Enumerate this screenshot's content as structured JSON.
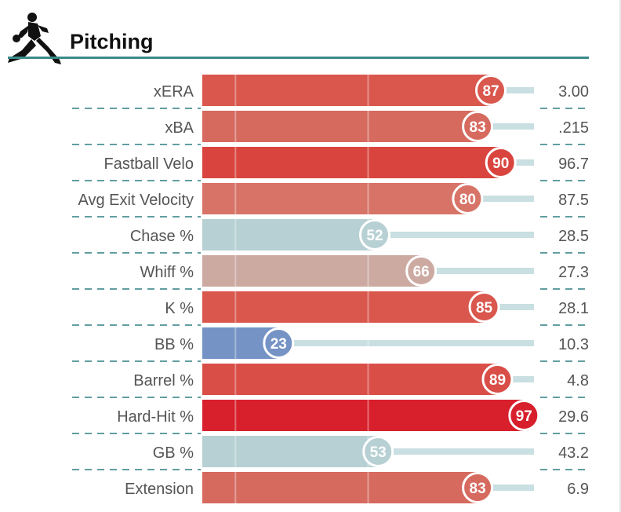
{
  "chart_data": {
    "type": "bar",
    "title": "Pitching",
    "subtitle": "",
    "xlim": [
      0,
      100
    ],
    "categories": [
      "xERA",
      "xBA",
      "Fastball Velo",
      "Avg Exit Velocity",
      "Chase %",
      "Whiff %",
      "K %",
      "BB %",
      "Barrel %",
      "Hard-Hit %",
      "GB %",
      "Extension"
    ],
    "percentiles": [
      87,
      83,
      90,
      80,
      52,
      66,
      85,
      23,
      89,
      97,
      53,
      83
    ],
    "stat_values": [
      "3.00",
      ".215",
      "96.7",
      "87.5",
      "28.5",
      "27.3",
      "28.1",
      "10.3",
      "4.8",
      "29.6",
      "43.2",
      "6.9"
    ],
    "reference_lines": [
      10,
      50
    ],
    "colors": [
      "#d9574d",
      "#d66a5f",
      "#d9453e",
      "#d77467",
      "#b7d0d3",
      "#ccaaa2",
      "#d9574d",
      "#7593c5",
      "#d94e47",
      "#d7202c",
      "#b7d0d3",
      "#d66a5f"
    ],
    "track_color": "#c9dfe1",
    "title_rule_color": "#3b8b8a",
    "separator_color": "#2f7f82"
  }
}
